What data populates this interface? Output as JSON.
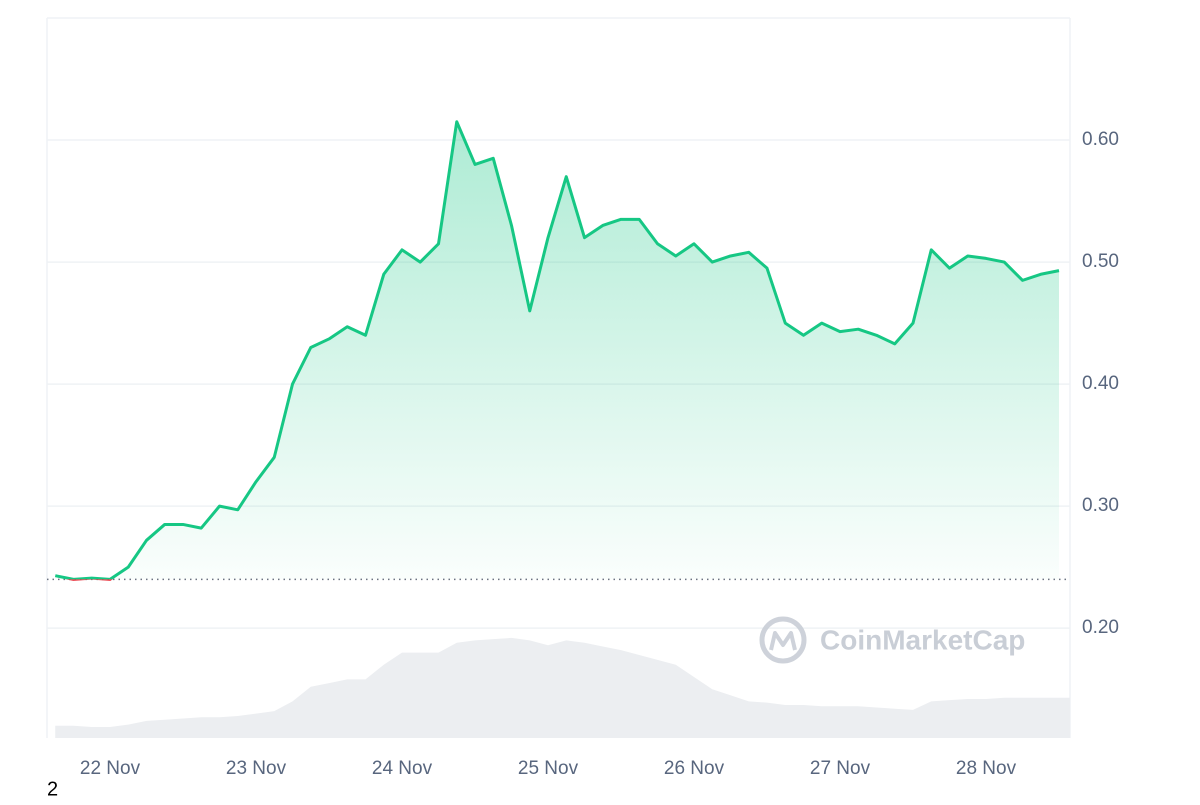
{
  "chart_data": {
    "type": "line",
    "categories": [
      null,
      null,
      null,
      "22 Nov",
      null,
      null,
      null,
      null,
      null,
      null,
      null,
      "23 Nov",
      null,
      null,
      null,
      null,
      null,
      null,
      null,
      "24 Nov",
      null,
      null,
      null,
      null,
      null,
      null,
      null,
      "25 Nov",
      null,
      null,
      null,
      null,
      null,
      null,
      null,
      "26 Nov",
      null,
      null,
      null,
      null,
      null,
      null,
      null,
      "27 Nov",
      null,
      null,
      null,
      null,
      null,
      null,
      null,
      "28 Nov",
      null,
      null,
      null,
      null
    ],
    "values": [
      0.243,
      0.24,
      0.241,
      0.24,
      0.25,
      0.272,
      0.285,
      0.285,
      0.282,
      0.3,
      0.297,
      0.32,
      0.34,
      0.4,
      0.43,
      0.437,
      0.447,
      0.44,
      0.49,
      0.51,
      0.5,
      0.515,
      0.615,
      0.58,
      0.585,
      0.53,
      0.46,
      0.52,
      0.57,
      0.52,
      0.53,
      0.535,
      0.535,
      0.515,
      0.505,
      0.515,
      0.5,
      0.505,
      0.508,
      0.495,
      0.45,
      0.44,
      0.45,
      0.443,
      0.445,
      0.44,
      0.433,
      0.45,
      0.51,
      0.495,
      0.505,
      0.503,
      0.5,
      0.485,
      0.49,
      0.493
    ],
    "volume_values": [
      0.12,
      0.12,
      0.119,
      0.119,
      0.121,
      0.124,
      0.125,
      0.126,
      0.127,
      0.127,
      0.128,
      0.13,
      0.132,
      0.14,
      0.152,
      0.155,
      0.158,
      0.158,
      0.17,
      0.18,
      0.18,
      0.18,
      0.188,
      0.19,
      0.191,
      0.192,
      0.19,
      0.186,
      0.19,
      0.188,
      0.185,
      0.182,
      0.178,
      0.174,
      0.17,
      0.16,
      0.15,
      0.145,
      0.14,
      0.139,
      0.137,
      0.137,
      0.136,
      0.136,
      0.136,
      0.135,
      0.134,
      0.133,
      0.14,
      0.141,
      0.142,
      0.142,
      0.143,
      0.143,
      0.143,
      0.143
    ],
    "baseline": 0.24,
    "color": "#16c784",
    "down_color": "#ea3943",
    "volume_color": "#eceef1",
    "ylim": [
      0.11,
      0.7
    ],
    "yticks": [
      {
        "value": 0.2,
        "label": "0.20"
      },
      {
        "value": 0.3,
        "label": "0.30"
      },
      {
        "value": 0.4,
        "label": "0.40"
      },
      {
        "value": 0.5,
        "label": "0.50"
      },
      {
        "value": 0.6,
        "label": "0.60"
      }
    ],
    "grid": true,
    "watermark": "CoinMarketCap"
  },
  "footer": "2"
}
